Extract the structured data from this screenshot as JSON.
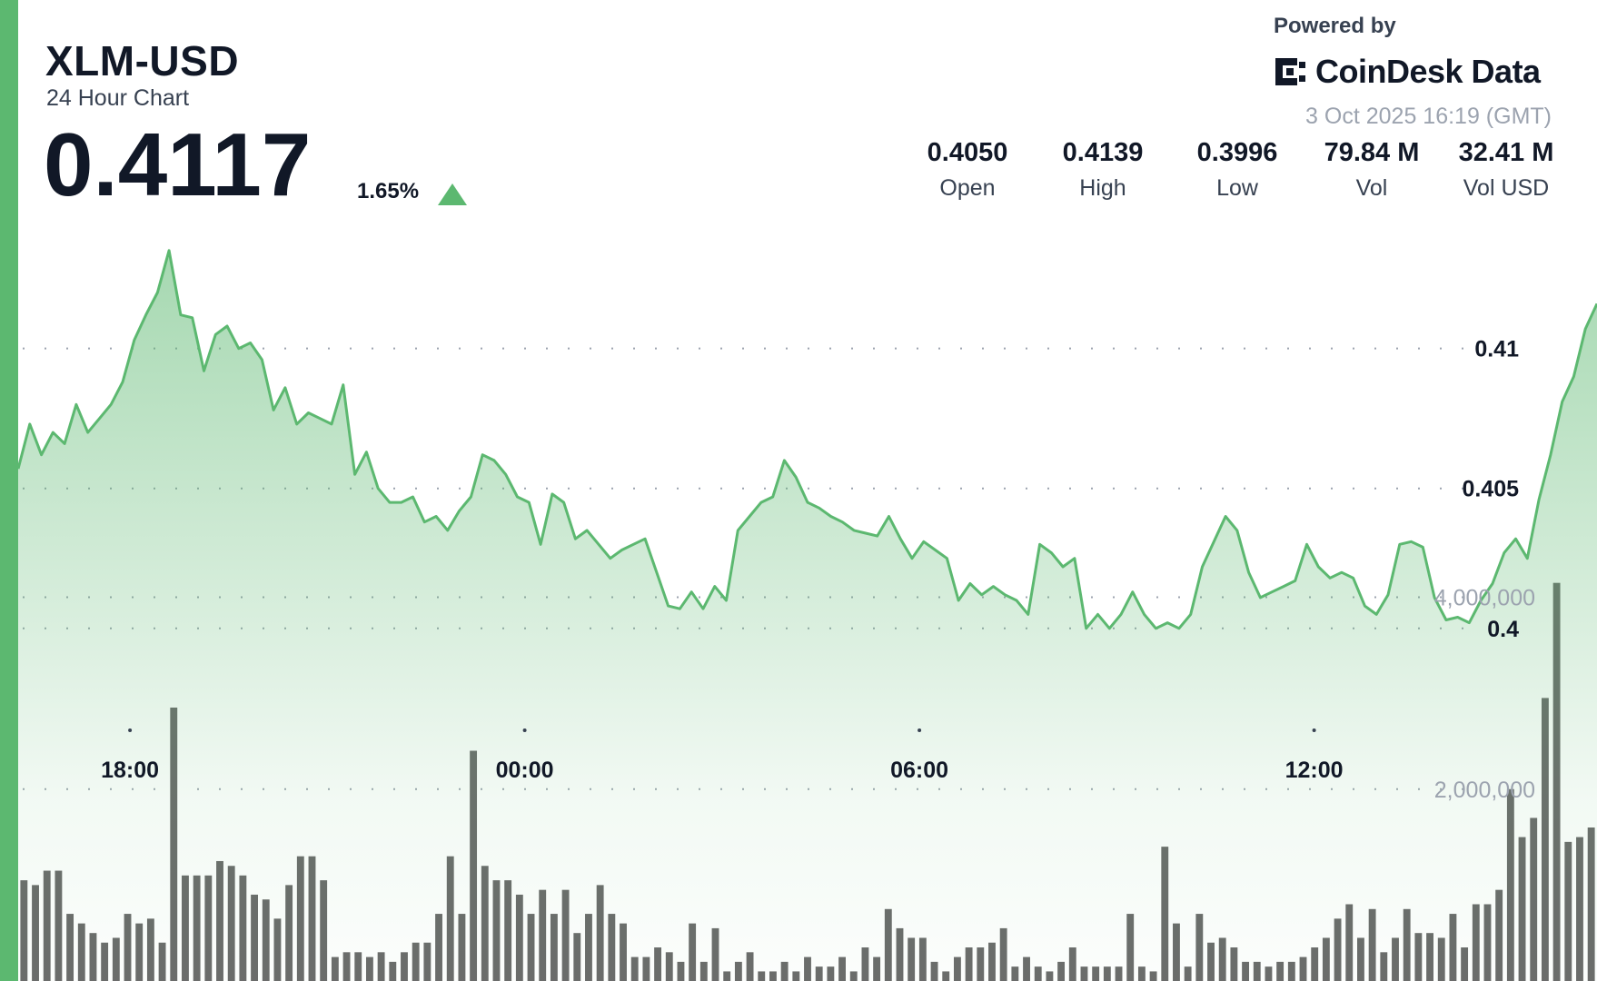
{
  "header": {
    "symbol": "XLM-USD",
    "subtitle": "24 Hour Chart",
    "price": "0.4117",
    "change_pct": "1.65%",
    "change_direction": "up",
    "powered_by": "Powered by",
    "brand": "CoinDesk Data",
    "timestamp": "3 Oct 2025 16:19 (GMT)"
  },
  "stats": [
    {
      "value": "0.4050",
      "label": "Open"
    },
    {
      "value": "0.4139",
      "label": "High"
    },
    {
      "value": "0.3996",
      "label": "Low"
    },
    {
      "value": "79.84 M",
      "label": "Vol"
    },
    {
      "value": "32.41 M",
      "label": "Vol USD"
    }
  ],
  "colors": {
    "accent": "#5cb870",
    "line": "#5cb870",
    "volume_bar": "#6b6b6b",
    "grid_dot": "#9ca3af"
  },
  "chart_data": {
    "type": "area",
    "title": "XLM-USD",
    "x_labels": [
      "18:00",
      "00:00",
      "06:00",
      "12:00"
    ],
    "x_label_hours": [
      1.7,
      7.7,
      13.7,
      19.7
    ],
    "x_range_hours": [
      0,
      24
    ],
    "price_ticks": [
      0.41,
      0.405,
      0.4
    ],
    "price_tick_labels": [
      "0.41",
      "0.405",
      "0.4"
    ],
    "price_ylim": [
      0.3985,
      0.4145
    ],
    "volume_ticks": [
      4000000,
      2000000
    ],
    "volume_tick_labels": [
      "4,000,000",
      "2,000,000"
    ],
    "volume_ylim": [
      0,
      4450000
    ],
    "grid": true,
    "series": [
      {
        "name": "Price",
        "values": [
          0.4057,
          0.4073,
          0.4062,
          0.407,
          0.4066,
          0.408,
          0.407,
          0.4075,
          0.408,
          0.4088,
          0.4103,
          0.4112,
          0.412,
          0.4135,
          0.4112,
          0.4111,
          0.4092,
          0.4105,
          0.4108,
          0.41,
          0.4102,
          0.4096,
          0.4078,
          0.4086,
          0.4073,
          0.4077,
          0.4075,
          0.4073,
          0.4087,
          0.4055,
          0.4063,
          0.405,
          0.4045,
          0.4045,
          0.4047,
          0.4038,
          0.404,
          0.4035,
          0.4042,
          0.4047,
          0.4062,
          0.406,
          0.4055,
          0.4047,
          0.4045,
          0.403,
          0.4048,
          0.4045,
          0.4032,
          0.4035,
          0.403,
          0.4025,
          0.4028,
          0.403,
          0.4032,
          0.402,
          0.4008,
          0.4007,
          0.4013,
          0.4007,
          0.4015,
          0.401,
          0.4035,
          0.404,
          0.4045,
          0.4047,
          0.406,
          0.4054,
          0.4045,
          0.4043,
          0.404,
          0.4038,
          0.4035,
          0.4034,
          0.4033,
          0.404,
          0.4032,
          0.4025,
          0.4031,
          0.4028,
          0.4025,
          0.401,
          0.4016,
          0.4012,
          0.4015,
          0.4012,
          0.401,
          0.4005,
          0.403,
          0.4027,
          0.4022,
          0.4025,
          0.4,
          0.4005,
          0.4,
          0.4005,
          0.4013,
          0.4005,
          0.4,
          0.4002,
          0.4,
          0.4005,
          0.4022,
          0.4031,
          0.404,
          0.4035,
          0.402,
          0.4011,
          0.4013,
          0.4015,
          0.4017,
          0.403,
          0.4022,
          0.4018,
          0.402,
          0.4018,
          0.4008,
          0.4005,
          0.4012,
          0.403,
          0.4031,
          0.4029,
          0.4011,
          0.4003,
          0.4004,
          0.4002,
          0.401,
          0.4016,
          0.4027,
          0.4032,
          0.4025,
          0.4046,
          0.4062,
          0.4081,
          0.409,
          0.4107,
          0.4116
        ]
      },
      {
        "name": "Volume",
        "values": [
          1050000,
          1000000,
          1150000,
          1150000,
          700000,
          600000,
          500000,
          400000,
          450000,
          700000,
          600000,
          650000,
          400000,
          2850000,
          1100000,
          1100000,
          1100000,
          1250000,
          1200000,
          1100000,
          900000,
          850000,
          650000,
          1000000,
          1300000,
          1300000,
          1050000,
          250000,
          300000,
          300000,
          250000,
          300000,
          200000,
          300000,
          400000,
          400000,
          700000,
          1300000,
          700000,
          2400000,
          1200000,
          1050000,
          1050000,
          900000,
          700000,
          950000,
          700000,
          950000,
          500000,
          700000,
          1000000,
          700000,
          600000,
          250000,
          250000,
          350000,
          300000,
          200000,
          600000,
          200000,
          550000,
          100000,
          200000,
          300000,
          100000,
          100000,
          200000,
          100000,
          250000,
          150000,
          150000,
          250000,
          100000,
          350000,
          250000,
          750000,
          550000,
          450000,
          450000,
          200000,
          100000,
          250000,
          350000,
          350000,
          400000,
          550000,
          150000,
          250000,
          150000,
          100000,
          200000,
          350000,
          150000,
          150000,
          150000,
          150000,
          700000,
          150000,
          100000,
          1400000,
          600000,
          150000,
          700000,
          400000,
          450000,
          350000,
          200000,
          200000,
          150000,
          200000,
          200000,
          250000,
          350000,
          450000,
          650000,
          800000,
          450000,
          750000,
          300000,
          450000,
          750000,
          500000,
          500000,
          450000,
          700000,
          350000,
          800000,
          800000,
          950000,
          2000000,
          1500000,
          1700000,
          2950000,
          4150000,
          1450000,
          1500000,
          1600000
        ]
      }
    ]
  }
}
